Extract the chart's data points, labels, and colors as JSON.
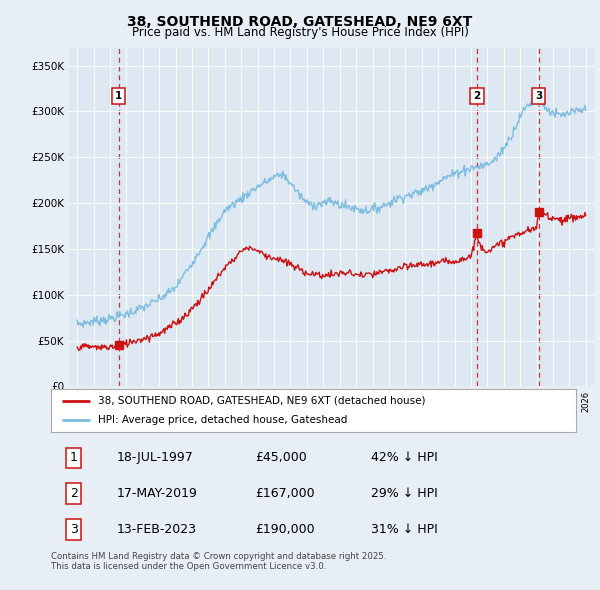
{
  "title": "38, SOUTHEND ROAD, GATESHEAD, NE9 6XT",
  "subtitle": "Price paid vs. HM Land Registry's House Price Index (HPI)",
  "bg_color": "#e8eef5",
  "plot_bg_color": "#dde8f3",
  "sale_dates": [
    1997.54,
    2019.37,
    2023.12
  ],
  "sale_prices": [
    45000,
    167000,
    190000
  ],
  "sale_labels": [
    "1",
    "2",
    "3"
  ],
  "hpi_line_color": "#7fbde0",
  "price_line_color": "#cc1111",
  "dashed_line_color": "#cc1111",
  "legend_entries": [
    "38, SOUTHEND ROAD, GATESHEAD, NE9 6XT (detached house)",
    "HPI: Average price, detached house, Gateshead"
  ],
  "table_rows": [
    [
      "1",
      "18-JUL-1997",
      "£45,000",
      "42% ↓ HPI"
    ],
    [
      "2",
      "17-MAY-2019",
      "£167,000",
      "29% ↓ HPI"
    ],
    [
      "3",
      "13-FEB-2023",
      "£190,000",
      "31% ↓ HPI"
    ]
  ],
  "footnote": "Contains HM Land Registry data © Crown copyright and database right 2025.\nThis data is licensed under the Open Government Licence v3.0.",
  "ylim": [
    0,
    370000
  ],
  "yticks": [
    0,
    50000,
    100000,
    150000,
    200000,
    250000,
    300000,
    350000
  ],
  "ytick_labels": [
    "£0",
    "£50K",
    "£100K",
    "£150K",
    "£200K",
    "£250K",
    "£300K",
    "£350K"
  ],
  "xlim_start": 1994.5,
  "xlim_end": 2026.5,
  "hpi_keypoints": [
    [
      1995.0,
      68000
    ],
    [
      1996.0,
      71000
    ],
    [
      1997.0,
      74000
    ],
    [
      1998.0,
      79000
    ],
    [
      1999.0,
      86000
    ],
    [
      2000.0,
      95000
    ],
    [
      2001.0,
      108000
    ],
    [
      2002.0,
      135000
    ],
    [
      2003.0,
      163000
    ],
    [
      2004.0,
      192000
    ],
    [
      2005.0,
      205000
    ],
    [
      2006.0,
      218000
    ],
    [
      2007.0,
      228000
    ],
    [
      2007.5,
      232000
    ],
    [
      2008.0,
      222000
    ],
    [
      2008.5,
      210000
    ],
    [
      2009.0,
      200000
    ],
    [
      2009.5,
      198000
    ],
    [
      2010.0,
      200000
    ],
    [
      2010.5,
      202000
    ],
    [
      2011.0,
      198000
    ],
    [
      2011.5,
      196000
    ],
    [
      2012.0,
      194000
    ],
    [
      2012.5,
      192000
    ],
    [
      2013.0,
      193000
    ],
    [
      2013.5,
      196000
    ],
    [
      2014.0,
      200000
    ],
    [
      2014.5,
      205000
    ],
    [
      2015.0,
      208000
    ],
    [
      2015.5,
      210000
    ],
    [
      2016.0,
      213000
    ],
    [
      2016.5,
      218000
    ],
    [
      2017.0,
      224000
    ],
    [
      2017.5,
      228000
    ],
    [
      2018.0,
      232000
    ],
    [
      2018.5,
      236000
    ],
    [
      2019.0,
      238000
    ],
    [
      2019.5,
      240000
    ],
    [
      2020.0,
      242000
    ],
    [
      2020.5,
      248000
    ],
    [
      2021.0,
      260000
    ],
    [
      2021.5,
      275000
    ],
    [
      2022.0,
      295000
    ],
    [
      2022.5,
      308000
    ],
    [
      2023.0,
      312000
    ],
    [
      2023.5,
      305000
    ],
    [
      2024.0,
      298000
    ],
    [
      2024.5,
      295000
    ],
    [
      2025.0,
      298000
    ],
    [
      2025.5,
      300000
    ],
    [
      2026.0,
      302000
    ]
  ],
  "price_keypoints": [
    [
      1995.0,
      43000
    ],
    [
      1995.5,
      43500
    ],
    [
      1996.0,
      43000
    ],
    [
      1996.5,
      42500
    ],
    [
      1997.0,
      43000
    ],
    [
      1997.54,
      45000
    ],
    [
      1998.0,
      47000
    ],
    [
      1998.5,
      50000
    ],
    [
      1999.0,
      52000
    ],
    [
      1999.5,
      55000
    ],
    [
      2000.0,
      58000
    ],
    [
      2000.5,
      63000
    ],
    [
      2001.0,
      69000
    ],
    [
      2001.5,
      76000
    ],
    [
      2002.0,
      85000
    ],
    [
      2002.5,
      95000
    ],
    [
      2003.0,
      105000
    ],
    [
      2003.5,
      118000
    ],
    [
      2004.0,
      130000
    ],
    [
      2004.5,
      138000
    ],
    [
      2005.0,
      148000
    ],
    [
      2005.5,
      152000
    ],
    [
      2006.0,
      148000
    ],
    [
      2006.5,
      143000
    ],
    [
      2007.0,
      140000
    ],
    [
      2007.5,
      137000
    ],
    [
      2008.0,
      133000
    ],
    [
      2008.5,
      128000
    ],
    [
      2009.0,
      124000
    ],
    [
      2009.5,
      122000
    ],
    [
      2010.0,
      121000
    ],
    [
      2010.5,
      122000
    ],
    [
      2011.0,
      123000
    ],
    [
      2011.5,
      124000
    ],
    [
      2012.0,
      122000
    ],
    [
      2012.5,
      121000
    ],
    [
      2013.0,
      122000
    ],
    [
      2013.5,
      124000
    ],
    [
      2014.0,
      126000
    ],
    [
      2014.5,
      128000
    ],
    [
      2015.0,
      130000
    ],
    [
      2015.5,
      132000
    ],
    [
      2016.0,
      133000
    ],
    [
      2016.5,
      134000
    ],
    [
      2017.0,
      135000
    ],
    [
      2017.5,
      136000
    ],
    [
      2018.0,
      137000
    ],
    [
      2018.5,
      139000
    ],
    [
      2019.0,
      142000
    ],
    [
      2019.37,
      167000
    ],
    [
      2019.5,
      155000
    ],
    [
      2020.0,
      148000
    ],
    [
      2020.5,
      152000
    ],
    [
      2021.0,
      158000
    ],
    [
      2021.5,
      163000
    ],
    [
      2022.0,
      167000
    ],
    [
      2022.5,
      170000
    ],
    [
      2023.0,
      172000
    ],
    [
      2023.12,
      190000
    ],
    [
      2023.5,
      188000
    ],
    [
      2024.0,
      184000
    ],
    [
      2024.5,
      182000
    ],
    [
      2025.0,
      183000
    ],
    [
      2025.5,
      185000
    ],
    [
      2026.0,
      186000
    ]
  ]
}
